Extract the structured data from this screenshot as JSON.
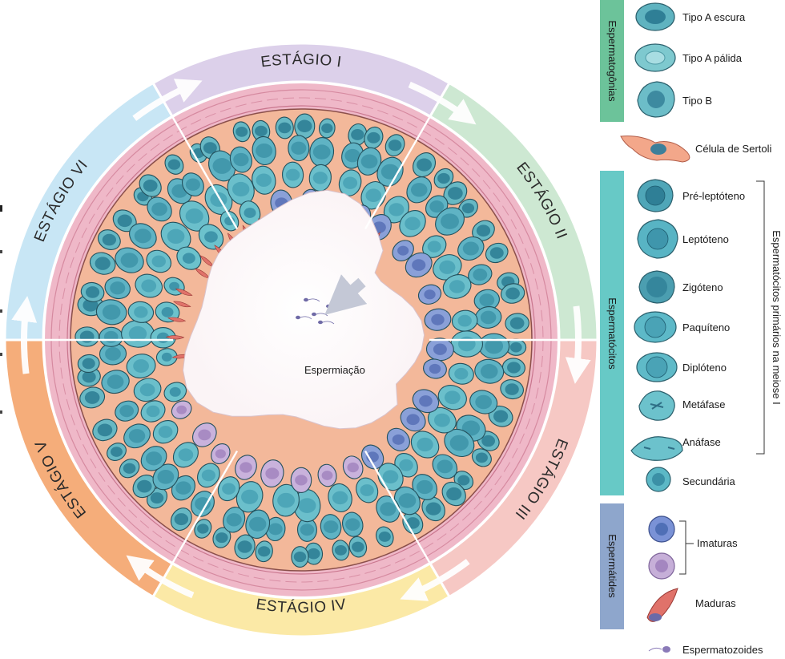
{
  "diagram": {
    "stages": [
      {
        "id": "I",
        "label": "ESTÁGIO I",
        "color": "#dcd0ea"
      },
      {
        "id": "II",
        "label": "ESTÁGIO II",
        "color": "#cde8d2"
      },
      {
        "id": "III",
        "label": "ESTÁGIO III",
        "color": "#f6c8c4"
      },
      {
        "id": "IV",
        "label": "ESTÁGIO IV",
        "color": "#fbe9a6"
      },
      {
        "id": "V",
        "label": "ESTÁGIO V",
        "color": "#f5ad7a"
      },
      {
        "id": "VI",
        "label": "ESTÁGIO VI",
        "color": "#c8e6f5"
      }
    ],
    "center_label": "Espermiação",
    "colors": {
      "tunica": "#efb8c8",
      "sertoli": "#f3b89a",
      "cell_teal": "#67b8c4",
      "cell_nucleus": "#2f7f96",
      "cell_violet": "#8aa0d8",
      "cell_lilac": "#c9b2dc",
      "sperm_red": "#e0726a"
    }
  },
  "legend": {
    "groups": {
      "espermatogonias": {
        "label": "Espermatogônias",
        "color": "#6cc39a"
      },
      "espermatocitos": {
        "label": "Espermatócitos",
        "color": "#67c9c6"
      },
      "espermatides": {
        "label": "Espermátides",
        "color": "#8ea6cc"
      }
    },
    "items": {
      "tipo_a_escura": "Tipo A escura",
      "tipo_a_palida": "Tipo A pálida",
      "tipo_b": "Tipo B",
      "sertoli": "Célula de Sertoli",
      "pre_leptoteno": "Pré-leptóteno",
      "leptoteno": "Leptóteno",
      "zigoteno": "Zigóteno",
      "paquiteno": "Paquíteno",
      "diploteno": "Diplóteno",
      "metafase": "Metáfase",
      "anafase": "Anáfase",
      "secundaria": "Secundária",
      "imaturas": "Imaturas",
      "maduras": "Maduras",
      "espermatozoides": "Espermatozoides"
    },
    "bracket_label": "Espermatócitos primários na meiose I"
  }
}
